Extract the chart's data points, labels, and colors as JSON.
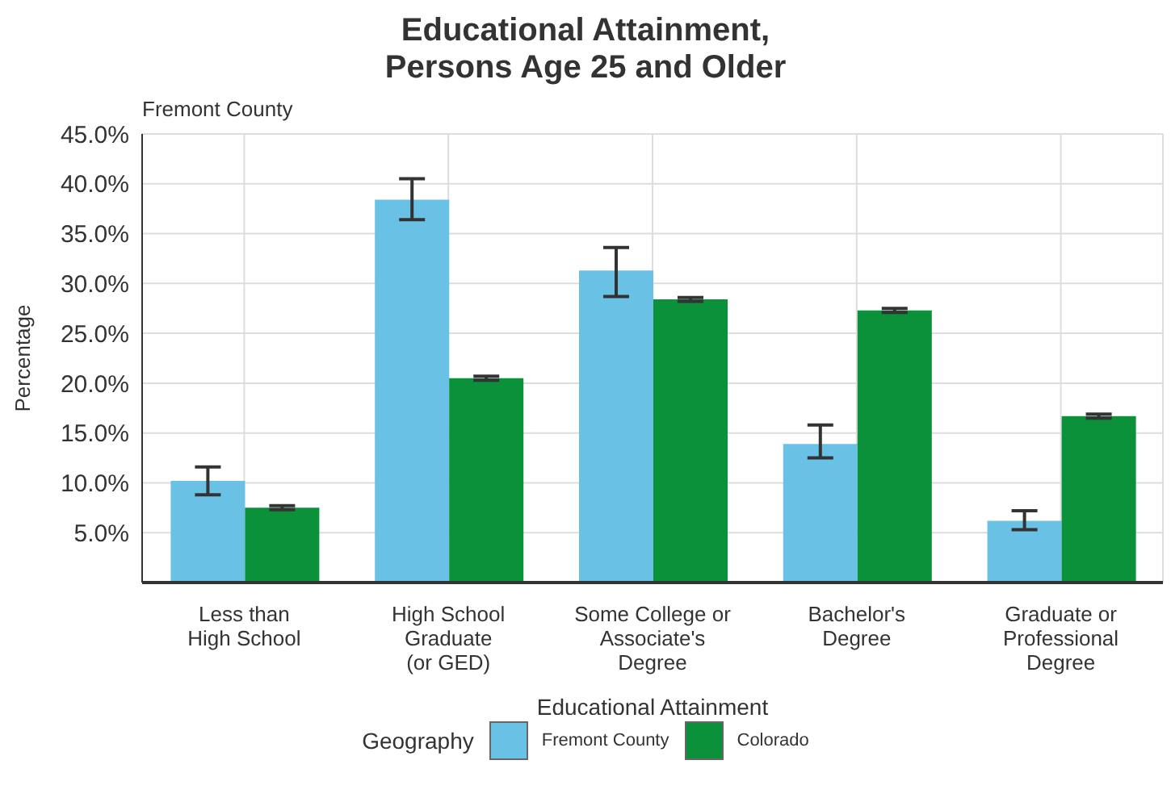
{
  "chart_data": {
    "type": "bar",
    "title": "Educational Attainment,\nPersons Age 25 and Older",
    "subtitle": "Fremont County",
    "xlabel": "Educational Attainment",
    "ylabel": "Percentage",
    "legend_title": "Geography",
    "categories": [
      "Less than\nHigh School",
      "High School\nGraduate\n(or GED)",
      "Some College or\nAssociate's\nDegree",
      "Bachelor's\nDegree",
      "Graduate or\nProfessional\nDegree"
    ],
    "series": [
      {
        "name": "Fremont County",
        "color": "#6ac1e6",
        "values": [
          10.2,
          38.4,
          31.3,
          13.9,
          6.2
        ],
        "errors": [
          [
            8.8,
            11.6
          ],
          [
            36.4,
            40.5
          ],
          [
            28.7,
            33.6
          ],
          [
            12.5,
            15.8
          ],
          [
            5.3,
            7.2
          ]
        ]
      },
      {
        "name": "Colorado",
        "color": "#0b9139",
        "values": [
          7.5,
          20.5,
          28.4,
          27.3,
          16.7
        ],
        "errors": [
          0.2,
          0.2,
          0.2,
          0.2,
          0.2
        ]
      }
    ],
    "ylim": [
      0,
      45
    ],
    "yticks": [
      {
        "value": 5,
        "label": "5.0%"
      },
      {
        "value": 10,
        "label": "10.0%"
      },
      {
        "value": 15,
        "label": "15.0%"
      },
      {
        "value": 20,
        "label": "20.0%"
      },
      {
        "value": 25,
        "label": "25.0%"
      },
      {
        "value": 30,
        "label": "30.0%"
      },
      {
        "value": 35,
        "label": "35.0%"
      },
      {
        "value": 40,
        "label": "40.0%"
      },
      {
        "value": 45,
        "label": "45.0%"
      }
    ],
    "grid": true,
    "legend": "bottom"
  }
}
